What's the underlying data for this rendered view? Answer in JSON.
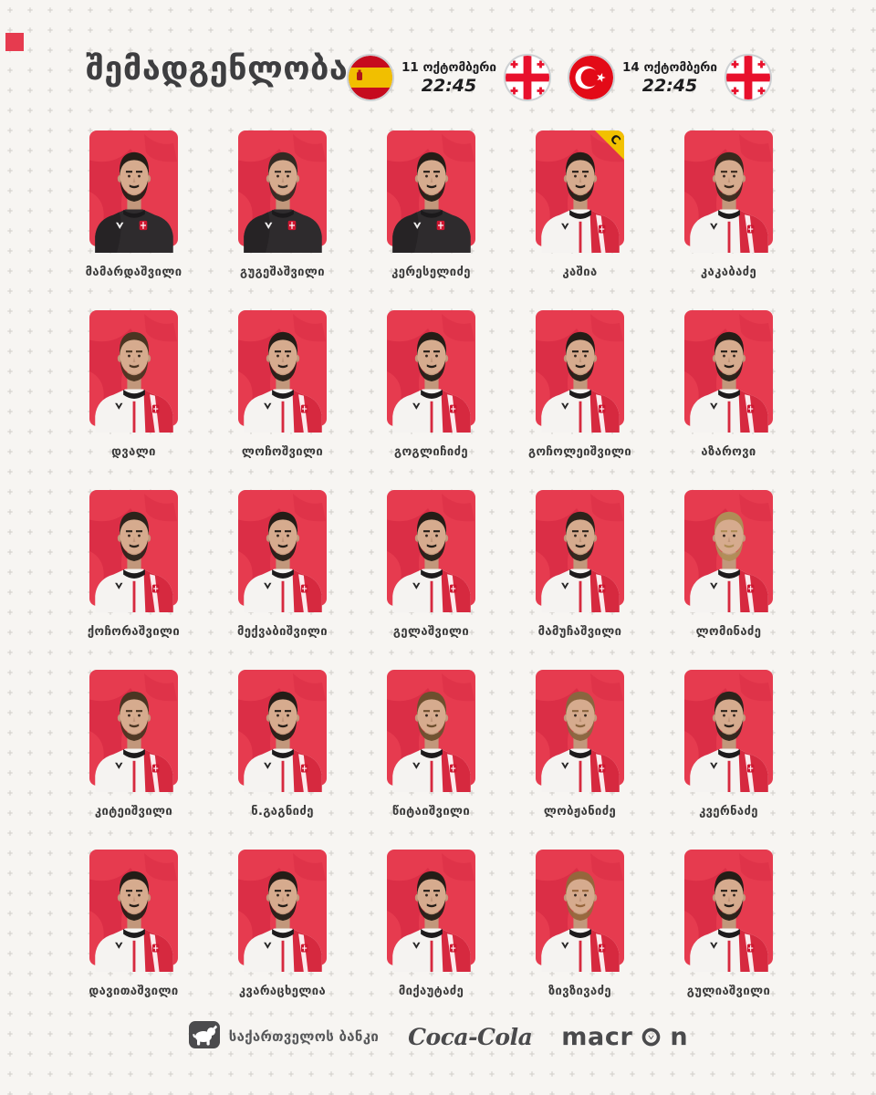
{
  "title": "შემადგენლობა",
  "fixtures": [
    {
      "opponent": "spain",
      "date": "11 ოქტომბერი",
      "time": "22:45",
      "home": "georgia"
    },
    {
      "opponent": "turkey",
      "date": "14 ოქტომბერი",
      "time": "22:45",
      "home": "georgia"
    }
  ],
  "captain_badge_letter": "C",
  "players": [
    {
      "name": "მამარდაშვილი",
      "kit": "gk",
      "captain": false,
      "hair": "#241d17"
    },
    {
      "name": "გუგეშაშვილი",
      "kit": "gk",
      "captain": false,
      "hair": "#332a23"
    },
    {
      "name": "კერესელიძე",
      "kit": "gk",
      "captain": false,
      "hair": "#241d17"
    },
    {
      "name": "კაშია",
      "kit": "outfield",
      "captain": true,
      "hair": "#241d17"
    },
    {
      "name": "კაკაბაძე",
      "kit": "outfield",
      "captain": false,
      "hair": "#38291d"
    },
    {
      "name": "დვალი",
      "kit": "outfield",
      "captain": false,
      "hair": "#4a3522"
    },
    {
      "name": "ლოჩოშვილი",
      "kit": "outfield",
      "captain": false,
      "hair": "#241d17"
    },
    {
      "name": "გოგლიჩიძე",
      "kit": "outfield",
      "captain": false,
      "hair": "#241d17"
    },
    {
      "name": "გოჩოლეიშვილი",
      "kit": "outfield",
      "captain": false,
      "hair": "#241d17"
    },
    {
      "name": "აზაროვი",
      "kit": "outfield",
      "captain": false,
      "hair": "#241d17"
    },
    {
      "name": "ქოჩორაშვილი",
      "kit": "outfield",
      "captain": false,
      "hair": "#2c231b"
    },
    {
      "name": "მექვაბიშვილი",
      "kit": "outfield",
      "captain": false,
      "hair": "#241d17"
    },
    {
      "name": "გელაშვილი",
      "kit": "outfield",
      "captain": false,
      "hair": "#241d17"
    },
    {
      "name": "მამუჩაშვილი",
      "kit": "outfield",
      "captain": false,
      "hair": "#2c231b"
    },
    {
      "name": "ლომინაძე",
      "kit": "outfield",
      "captain": false,
      "hair": "#b08d57"
    },
    {
      "name": "კიტეიშვილი",
      "kit": "outfield",
      "captain": false,
      "hair": "#4a3522"
    },
    {
      "name": "ნ.გაგნიძე",
      "kit": "outfield",
      "captain": false,
      "hair": "#241d17"
    },
    {
      "name": "წიტაიშვილი",
      "kit": "outfield",
      "captain": false,
      "hair": "#6d4f2e"
    },
    {
      "name": "ლობჟანიძე",
      "kit": "outfield",
      "captain": false,
      "hair": "#8a653f"
    },
    {
      "name": "კვერნაძე",
      "kit": "outfield",
      "captain": false,
      "hair": "#2c231b"
    },
    {
      "name": "დავითაშვილი",
      "kit": "outfield",
      "captain": false,
      "hair": "#241d17"
    },
    {
      "name": "კვარაცხელია",
      "kit": "outfield",
      "captain": false,
      "hair": "#241d17"
    },
    {
      "name": "მიქაუტაძე",
      "kit": "outfield",
      "captain": false,
      "hair": "#241d17"
    },
    {
      "name": "ზივზივაძე",
      "kit": "outfield",
      "captain": false,
      "hair": "#96663c"
    },
    {
      "name": "გულიაშვილი",
      "kit": "outfield",
      "captain": false,
      "hair": "#241d17"
    }
  ],
  "sponsors": {
    "bank": "საქართველოს ბანკი",
    "beverage": "Coca-Cola",
    "kit_maker": "macron"
  },
  "colors": {
    "card_red": "#e63b4f",
    "card_pattern_red": "#d22440",
    "badge_yellow": "#f2c100",
    "georgian_flag_red": "#e8112d",
    "spain_red": "#c60b1e",
    "spain_yellow": "#f1bf00",
    "turkey_red": "#e30a17",
    "title_gray": "#3e3e40"
  }
}
